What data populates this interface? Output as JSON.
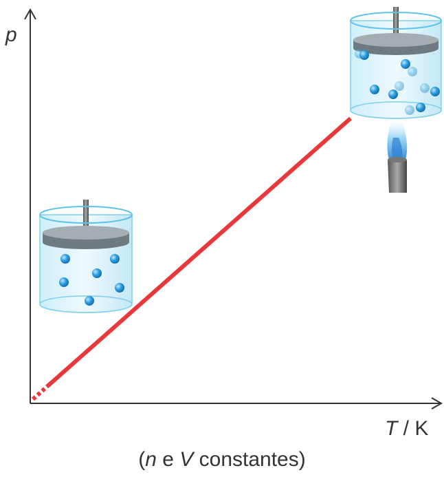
{
  "y_axis_label": "p",
  "x_axis_label": [
    "T",
    " / K"
  ],
  "caption": [
    "(",
    "n",
    " e ",
    "V",
    " constantes)"
  ]
}
